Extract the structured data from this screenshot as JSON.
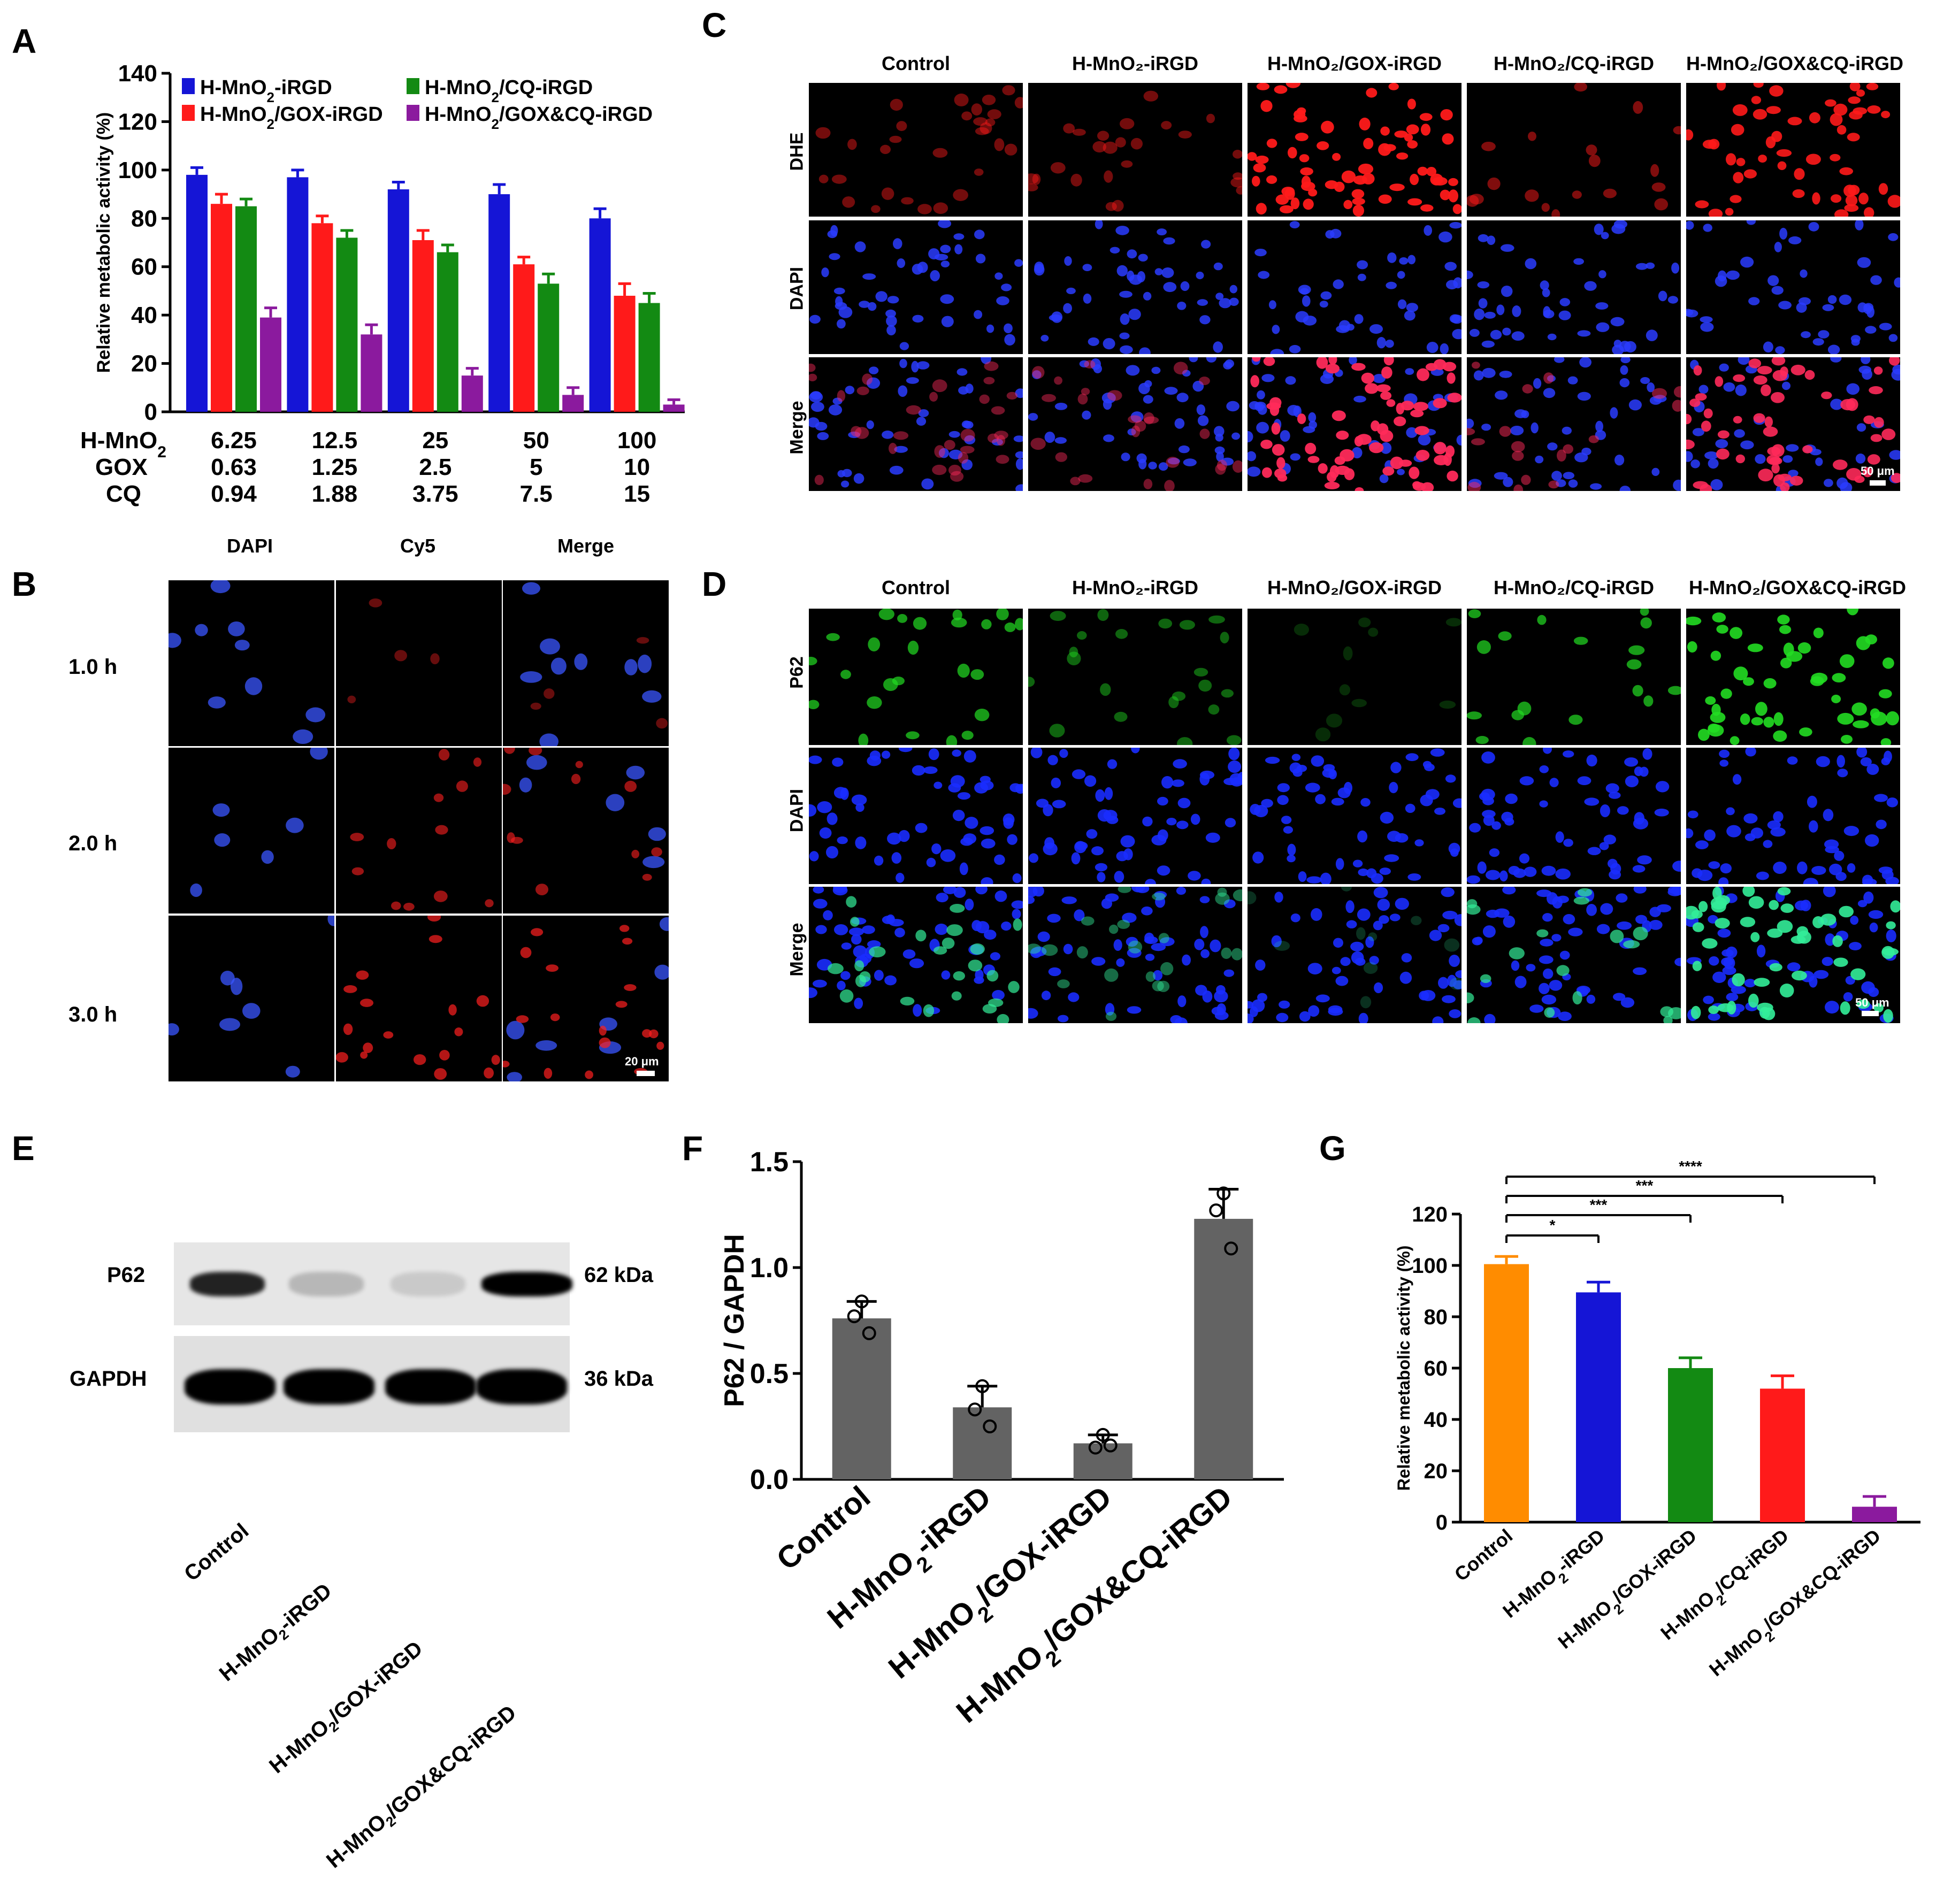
{
  "panels": {
    "A": "A",
    "B": "B",
    "C": "C",
    "D": "D",
    "E": "E",
    "F": "F",
    "G": "G"
  },
  "colors": {
    "blue": "#1515d6",
    "red": "#ff1a1a",
    "green": "#138a13",
    "purple": "#8b1a9e",
    "orange": "#ff8c00",
    "gray": "#636363"
  },
  "chart_data": [
    {
      "id": "A",
      "type": "bar",
      "ylabel": "Relative metabolic activity (%)",
      "ylim": [
        0,
        140
      ],
      "yticks": [
        0,
        20,
        40,
        60,
        80,
        100,
        120,
        140
      ],
      "legend": [
        "H-MnO₂-iRGD",
        "H-MnO₂/CQ-iRGD",
        "H-MnO₂/GOX-iRGD",
        "H-MnO₂/GOX&CQ-iRGD"
      ],
      "row_labels": [
        "H-MnO₂",
        "GOX",
        "CQ"
      ],
      "categories": [
        [
          "6.25",
          "0.63",
          "0.94"
        ],
        [
          "12.5",
          "1.25",
          "1.88"
        ],
        [
          "25",
          "2.5",
          "3.75"
        ],
        [
          "50",
          "5",
          "7.5"
        ],
        [
          "100",
          "10",
          "15"
        ]
      ],
      "series": [
        {
          "name": "H-MnO₂-iRGD",
          "color": "#1515d6",
          "values": [
            98,
            97,
            92,
            90,
            80
          ],
          "errors": [
            3,
            3,
            3,
            4,
            4
          ]
        },
        {
          "name": "H-MnO₂/GOX-iRGD",
          "color": "#ff1a1a",
          "values": [
            86,
            78,
            71,
            61,
            48
          ],
          "errors": [
            4,
            3,
            4,
            3,
            5
          ]
        },
        {
          "name": "H-MnO₂/CQ-iRGD",
          "color": "#138a13",
          "values": [
            85,
            72,
            66,
            53,
            45
          ],
          "errors": [
            3,
            3,
            3,
            4,
            4
          ]
        },
        {
          "name": "H-MnO₂/GOX&CQ-iRGD",
          "color": "#8b1a9e",
          "values": [
            39,
            32,
            15,
            7,
            3
          ],
          "errors": [
            4,
            4,
            3,
            3,
            2
          ]
        }
      ]
    },
    {
      "id": "F",
      "type": "bar",
      "ylabel": "P62 / GAPDH",
      "ylim": [
        0,
        1.5
      ],
      "yticks": [
        "0.0",
        "0.5",
        "1.0",
        "1.5"
      ],
      "categories": [
        "Control",
        "H-MnO₂-iRGD",
        "H-MnO₂/GOX-iRGD",
        "H-MnO₂/GOX&CQ-iRGD"
      ],
      "values": [
        0.76,
        0.34,
        0.17,
        1.23
      ],
      "errors": [
        0.08,
        0.1,
        0.04,
        0.14
      ],
      "points": [
        [
          0.84,
          0.77,
          0.69
        ],
        [
          0.44,
          0.33,
          0.25
        ],
        [
          0.21,
          0.15,
          0.16
        ],
        [
          1.35,
          1.27,
          1.09
        ]
      ]
    },
    {
      "id": "G",
      "type": "bar",
      "ylabel": "Relative metabolic activity (%)",
      "ylim": [
        0,
        120
      ],
      "yticks": [
        0,
        20,
        40,
        60,
        80,
        100,
        120
      ],
      "categories": [
        "Control",
        "H-MnO₂-iRGD",
        "H-MnO₂/GOX-iRGD",
        "H-MnO₂/CQ-iRGD",
        "H-MnO₂/GOX&CQ-iRGD"
      ],
      "values": [
        100.5,
        89.5,
        60,
        52,
        6
      ],
      "errors": [
        3,
        4,
        4,
        5,
        4
      ],
      "colors": [
        "#ff8c00",
        "#1515d6",
        "#138a13",
        "#ff1a1a",
        "#8b1a9e"
      ],
      "significance": [
        "*",
        "***",
        "***",
        "****"
      ]
    }
  ],
  "panelB": {
    "columns": [
      "DAPI",
      "Cy5",
      "Merge"
    ],
    "rows": [
      "1.0 h",
      "2.0 h",
      "3.0 h"
    ],
    "scalebar": "20 μm"
  },
  "panelC": {
    "columns": [
      "Control",
      "H-MnO₂-iRGD",
      "H-MnO₂/GOX-iRGD",
      "H-MnO₂/CQ-iRGD",
      "H-MnO₂/GOX&CQ-iRGD"
    ],
    "rows": [
      "DHE",
      "DAPI",
      "Merge"
    ],
    "scalebar": "50 μm"
  },
  "panelD": {
    "columns": [
      "Control",
      "H-MnO₂-iRGD",
      "H-MnO₂/GOX-iRGD",
      "H-MnO₂/CQ-iRGD",
      "H-MnO₂/GOX&CQ-iRGD"
    ],
    "rows": [
      "P62",
      "DAPI",
      "Merge"
    ],
    "scalebar": "50 μm"
  },
  "panelE": {
    "rows": [
      "P62",
      "GAPDH"
    ],
    "sizes": [
      "62 kDa",
      "36 kDa"
    ],
    "lanes": [
      "Control",
      "H-MnO₂-iRGD",
      "H-MnO₂/GOX-iRGD",
      "H-MnO₂/GOX&CQ-iRGD"
    ],
    "p62_band_intensity": [
      0.85,
      0.2,
      0.12,
      1.0
    ],
    "gapdh_band_intensity": [
      1.0,
      1.0,
      1.0,
      1.0
    ]
  }
}
